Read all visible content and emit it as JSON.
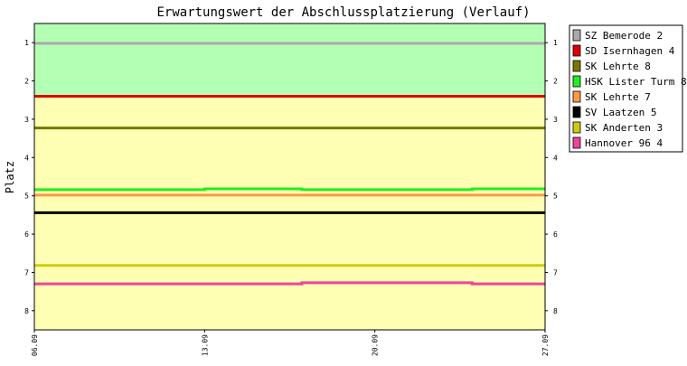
{
  "chart_data": {
    "type": "line",
    "title": "Erwartungswert der Abschlussplatzierung (Verlauf)",
    "xlabel": "",
    "ylabel": "Platz",
    "x": [
      "06.09",
      "10.09",
      "13.09",
      "16.09",
      "17.09",
      "20.09",
      "23.09",
      "24.09",
      "27.09"
    ],
    "x_ticks": [
      "06.09",
      "13.09",
      "20.09",
      "27.09"
    ],
    "y_ticks": [
      1,
      2,
      3,
      4,
      5,
      6,
      7,
      8
    ],
    "ylim": [
      8.5,
      0.5
    ],
    "y_inverted": true,
    "grid": false,
    "legend_position": "right",
    "bands": [
      {
        "from": 0.5,
        "to": 2.4,
        "color": "#b3ffb3"
      },
      {
        "from": 2.4,
        "to": 8.5,
        "color": "#ffffb3"
      }
    ],
    "series": [
      {
        "name": "SZ Bemerode 2",
        "color": "#aaaaaa",
        "values": [
          1.02,
          1.02,
          1.02,
          1.02,
          1.02,
          1.02,
          1.02,
          1.02,
          1.02
        ]
      },
      {
        "name": "SD Isernhagen 4",
        "color": "#dd0000",
        "values": [
          2.4,
          2.4,
          2.4,
          2.4,
          2.4,
          2.4,
          2.4,
          2.4,
          2.4
        ]
      },
      {
        "name": "SK Lehrte 8",
        "color": "#777700",
        "values": [
          3.23,
          3.23,
          3.23,
          3.23,
          3.23,
          3.23,
          3.23,
          3.23,
          3.23
        ]
      },
      {
        "name": "HSK Lister Turm 8",
        "color": "#22ee22",
        "values": [
          4.84,
          4.84,
          4.82,
          4.82,
          4.84,
          4.84,
          4.84,
          4.82,
          4.82
        ]
      },
      {
        "name": "SK Lehrte 7",
        "color": "#ff9944",
        "values": [
          4.98,
          4.98,
          4.98,
          4.98,
          4.98,
          4.98,
          4.98,
          4.98,
          4.98
        ]
      },
      {
        "name": "SV Laatzen 5",
        "color": "#000000",
        "values": [
          5.44,
          5.44,
          5.44,
          5.44,
          5.44,
          5.44,
          5.44,
          5.44,
          5.44
        ]
      },
      {
        "name": "SK Anderten 3",
        "color": "#cccc11",
        "values": [
          6.82,
          6.82,
          6.82,
          6.82,
          6.82,
          6.82,
          6.82,
          6.82,
          6.82
        ]
      },
      {
        "name": "Hannover 96 4",
        "color": "#ee4499",
        "values": [
          7.3,
          7.3,
          7.3,
          7.3,
          7.27,
          7.27,
          7.27,
          7.3,
          7.3
        ]
      }
    ]
  }
}
